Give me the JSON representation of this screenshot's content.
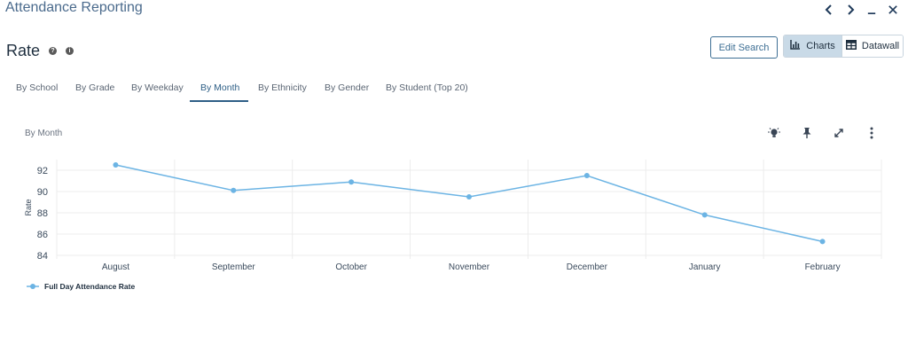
{
  "app": {
    "title": "Attendance Reporting"
  },
  "page": {
    "title": "Rate"
  },
  "toolbar": {
    "edit_search": "Edit Search",
    "charts": "Charts",
    "datawall": "Datawall"
  },
  "tabs": [
    {
      "label": "By School"
    },
    {
      "label": "By Grade"
    },
    {
      "label": "By Weekday"
    },
    {
      "label": "By Month",
      "active": true
    },
    {
      "label": "By Ethnicity"
    },
    {
      "label": "By Gender"
    },
    {
      "label": "By Student (Top 20)"
    }
  ],
  "chart_section": {
    "title": "By Month"
  },
  "colors": {
    "series": "#6cb4e4",
    "accent": "#2e5f86"
  },
  "icons": [
    "lightbulb-icon",
    "pin-icon",
    "expand-icon",
    "more-vert-icon",
    "help-icon",
    "info-icon",
    "bar-chart-icon",
    "table-icon"
  ],
  "chart_data": {
    "type": "line",
    "categories": [
      "August",
      "September",
      "October",
      "November",
      "December",
      "January",
      "February"
    ],
    "series": [
      {
        "name": "Full Day Attendance Rate",
        "values": [
          92.5,
          90.1,
          90.9,
          89.5,
          91.5,
          87.8,
          85.3
        ]
      }
    ],
    "ylabel": "Rate",
    "yticks": [
      84,
      86,
      88,
      90,
      92
    ],
    "ylim": [
      84,
      93
    ],
    "grid": true,
    "legend": "bottom-left"
  }
}
